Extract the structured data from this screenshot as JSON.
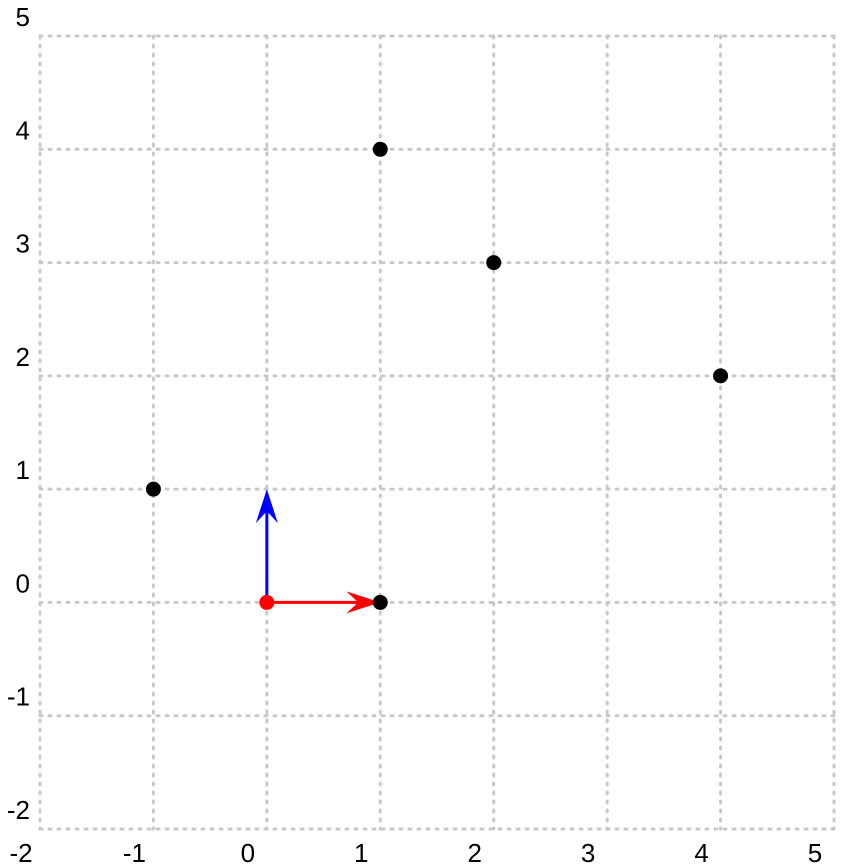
{
  "chart_data": {
    "type": "scatter",
    "title": "",
    "xlabel": "",
    "ylabel": "",
    "xlim": [
      -2,
      5
    ],
    "ylim": [
      -2,
      5
    ],
    "grid": true,
    "x_ticks": [
      "-2",
      "-1",
      "0",
      "1",
      "2",
      "3",
      "4",
      "5"
    ],
    "y_ticks": [
      "-2",
      "-1",
      "0",
      "1",
      "2",
      "3",
      "4",
      "5"
    ],
    "points": [
      {
        "x": 1,
        "y": 4
      },
      {
        "x": 2,
        "y": 3
      },
      {
        "x": 4,
        "y": 2
      },
      {
        "x": -1,
        "y": 1
      },
      {
        "x": 1,
        "y": 0
      }
    ],
    "origin": {
      "x": 0,
      "y": 0,
      "color": "#ff0000"
    },
    "vectors": [
      {
        "name": "basis-x",
        "from": [
          0,
          0
        ],
        "to": [
          1,
          0
        ],
        "color": "#ff0000"
      },
      {
        "name": "basis-y",
        "from": [
          0,
          0
        ],
        "to": [
          0,
          1
        ],
        "color": "#0000ff"
      }
    ],
    "point_color": "#000000",
    "grid_color": "#c8c8c8"
  }
}
